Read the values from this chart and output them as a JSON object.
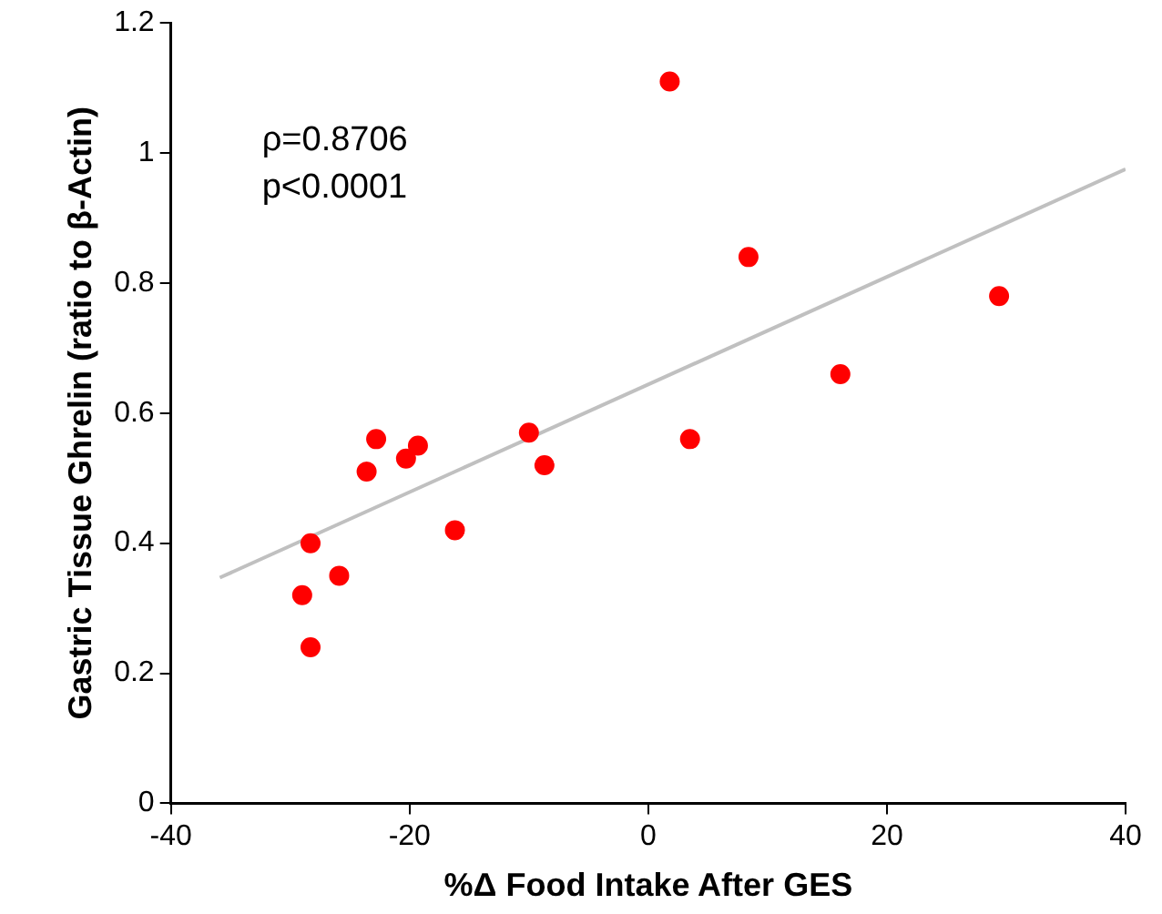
{
  "chart_data": {
    "type": "scatter",
    "xlabel": "%Δ Food Intake After GES",
    "ylabel": "Gastric Tissue Ghrelin (ratio to β-Actin)",
    "annotations": [
      "ρ=0.8706",
      "p<0.0001"
    ],
    "series": [
      {
        "color": "#ff0000",
        "marker": "circle",
        "x": [
          1.8,
          8.4,
          29.4,
          16.1,
          3.5,
          -10.0,
          -8.7,
          -22.8,
          -19.3,
          -20.3,
          -23.6,
          -16.2,
          -28.3,
          -25.9,
          -29.0,
          -28.3
        ],
        "values": [
          1.11,
          0.84,
          0.78,
          0.66,
          0.56,
          0.57,
          0.52,
          0.56,
          0.55,
          0.53,
          0.51,
          0.42,
          0.4,
          0.35,
          0.32,
          0.24
        ]
      },
      {
        "type": "line",
        "marker": "none",
        "color": "#c0c0c0",
        "x": [
          -35.9,
          40
        ],
        "values": [
          0.347,
          0.975
        ]
      }
    ],
    "xlim": [
      -40,
      40
    ],
    "xticks": [
      -40,
      -20,
      0,
      20,
      40
    ],
    "ylim": [
      0,
      1.2
    ],
    "yticks": [
      0,
      0.2,
      0.4,
      0.6,
      0.8,
      1,
      1.2
    ],
    "grid": false,
    "legend": false
  }
}
